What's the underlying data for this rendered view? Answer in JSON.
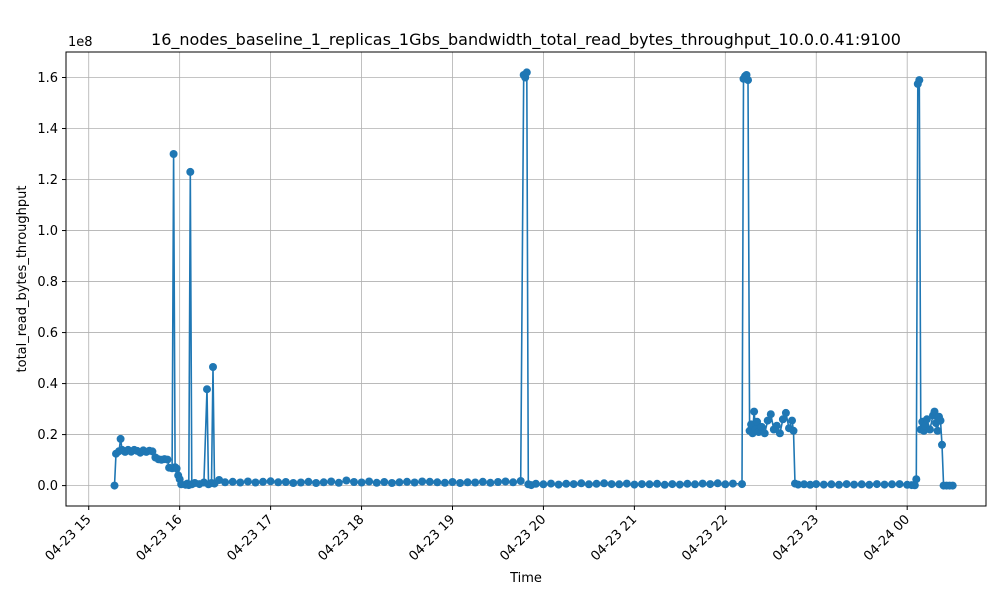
{
  "chart_data": {
    "type": "line",
    "title": "16_nodes_baseline_1_replicas_1Gbs_bandwidth_total_read_bytes_throughput_10.0.0.41:9100",
    "xlabel": "Time",
    "ylabel": "total_read_bytes_throughput",
    "y_offset_label": "1e8",
    "y_tick_labels": [
      "0.0",
      "0.2",
      "0.4",
      "0.6",
      "0.8",
      "1.0",
      "1.2",
      "1.4",
      "1.6"
    ],
    "y_ticks": [
      0,
      20000000,
      40000000,
      60000000,
      80000000,
      100000000,
      120000000,
      140000000,
      160000000
    ],
    "x_tick_labels": [
      "04-23 15",
      "04-23 16",
      "04-23 17",
      "04-23 18",
      "04-23 19",
      "04-23 20",
      "04-23 21",
      "04-23 22",
      "04-23 23",
      "04-24 00"
    ],
    "x_ticks": [
      "2024-04-23 15:00",
      "2024-04-23 16:00",
      "2024-04-23 17:00",
      "2024-04-23 18:00",
      "2024-04-23 19:00",
      "2024-04-23 20:00",
      "2024-04-23 21:00",
      "2024-04-23 22:00",
      "2024-04-23 23:00",
      "2024-04-24 00:00"
    ],
    "xlim": [
      "2024-04-23 14:45",
      "2024-04-24 00:52"
    ],
    "ylim": [
      -8000000,
      170000000
    ],
    "grid": true,
    "color": "#1f77b4",
    "series": [
      {
        "points": [
          [
            "2024-04-23 15:17",
            0
          ],
          [
            "2024-04-23 15:18",
            12500000
          ],
          [
            "2024-04-23 15:20",
            13500000
          ],
          [
            "2024-04-23 15:21",
            18300000
          ],
          [
            "2024-04-23 15:22",
            14000000
          ],
          [
            "2024-04-23 15:24",
            13200000
          ],
          [
            "2024-04-23 15:26",
            14000000
          ],
          [
            "2024-04-23 15:28",
            13300000
          ],
          [
            "2024-04-23 15:30",
            14000000
          ],
          [
            "2024-04-23 15:32",
            13600000
          ],
          [
            "2024-04-23 15:34",
            12900000
          ],
          [
            "2024-04-23 15:36",
            13800000
          ],
          [
            "2024-04-23 15:38",
            13200000
          ],
          [
            "2024-04-23 15:40",
            13700000
          ],
          [
            "2024-04-23 15:42",
            13400000
          ],
          [
            "2024-04-23 15:44",
            11000000
          ],
          [
            "2024-04-23 15:46",
            10300000
          ],
          [
            "2024-04-23 15:48",
            10100000
          ],
          [
            "2024-04-23 15:50",
            10400000
          ],
          [
            "2024-04-23 15:52",
            10200000
          ],
          [
            "2024-04-23 15:53",
            7000000
          ],
          [
            "2024-04-23 15:55",
            6800000
          ],
          [
            "2024-04-23 15:56",
            130000000
          ],
          [
            "2024-04-23 15:57",
            7200000
          ],
          [
            "2024-04-23 15:58",
            6700000
          ],
          [
            "2024-04-23 15:59",
            4000000
          ],
          [
            "2024-04-23 16:00",
            2500000
          ],
          [
            "2024-04-23 16:01",
            500000
          ],
          [
            "2024-04-23 16:04",
            300000
          ],
          [
            "2024-04-23 16:05",
            800000
          ],
          [
            "2024-04-23 16:06",
            200000
          ],
          [
            "2024-04-23 16:07",
            123000000
          ],
          [
            "2024-04-23 16:08",
            500000
          ],
          [
            "2024-04-23 16:10",
            1000000
          ],
          [
            "2024-04-23 16:13",
            600000
          ],
          [
            "2024-04-23 16:16",
            1200000
          ],
          [
            "2024-04-23 16:18",
            37800000
          ],
          [
            "2024-04-23 16:19",
            500000
          ],
          [
            "2024-04-23 16:21",
            1000000
          ],
          [
            "2024-04-23 16:22",
            46500000
          ],
          [
            "2024-04-23 16:23",
            800000
          ],
          [
            "2024-04-23 16:26",
            2200000
          ],
          [
            "2024-04-23 16:30",
            1300000
          ],
          [
            "2024-04-23 16:35",
            1500000
          ],
          [
            "2024-04-23 16:40",
            1200000
          ],
          [
            "2024-04-23 16:45",
            1600000
          ],
          [
            "2024-04-23 16:50",
            1200000
          ],
          [
            "2024-04-23 16:55",
            1500000
          ],
          [
            "2024-04-23 17:00",
            1700000
          ],
          [
            "2024-04-23 17:05",
            1300000
          ],
          [
            "2024-04-23 17:10",
            1400000
          ],
          [
            "2024-04-23 17:15",
            1000000
          ],
          [
            "2024-04-23 17:20",
            1200000
          ],
          [
            "2024-04-23 17:25",
            1500000
          ],
          [
            "2024-04-23 17:30",
            1000000
          ],
          [
            "2024-04-23 17:35",
            1300000
          ],
          [
            "2024-04-23 17:40",
            1600000
          ],
          [
            "2024-04-23 17:45",
            1100000
          ],
          [
            "2024-04-23 17:50",
            2000000
          ],
          [
            "2024-04-23 17:55",
            1400000
          ],
          [
            "2024-04-23 18:00",
            1200000
          ],
          [
            "2024-04-23 18:05",
            1600000
          ],
          [
            "2024-04-23 18:10",
            1100000
          ],
          [
            "2024-04-23 18:15",
            1400000
          ],
          [
            "2024-04-23 18:20",
            1000000
          ],
          [
            "2024-04-23 18:25",
            1300000
          ],
          [
            "2024-04-23 18:30",
            1500000
          ],
          [
            "2024-04-23 18:35",
            1200000
          ],
          [
            "2024-04-23 18:40",
            1600000
          ],
          [
            "2024-04-23 18:45",
            1500000
          ],
          [
            "2024-04-23 18:50",
            1300000
          ],
          [
            "2024-04-23 18:55",
            1100000
          ],
          [
            "2024-04-23 19:00",
            1400000
          ],
          [
            "2024-04-23 19:05",
            1000000
          ],
          [
            "2024-04-23 19:10",
            1300000
          ],
          [
            "2024-04-23 19:15",
            1200000
          ],
          [
            "2024-04-23 19:20",
            1500000
          ],
          [
            "2024-04-23 19:25",
            1100000
          ],
          [
            "2024-04-23 19:30",
            1400000
          ],
          [
            "2024-04-23 19:35",
            1600000
          ],
          [
            "2024-04-23 19:40",
            1300000
          ],
          [
            "2024-04-23 19:45",
            1800000
          ],
          [
            "2024-04-23 19:47",
            161000000
          ],
          [
            "2024-04-23 19:48",
            160000000
          ],
          [
            "2024-04-23 19:49",
            162000000
          ],
          [
            "2024-04-23 19:50",
            500000
          ],
          [
            "2024-04-23 19:52",
            200000
          ],
          [
            "2024-04-23 19:55",
            700000
          ],
          [
            "2024-04-23 20:00",
            500000
          ],
          [
            "2024-04-23 20:05",
            800000
          ],
          [
            "2024-04-23 20:10",
            400000
          ],
          [
            "2024-04-23 20:15",
            700000
          ],
          [
            "2024-04-23 20:20",
            600000
          ],
          [
            "2024-04-23 20:25",
            900000
          ],
          [
            "2024-04-23 20:30",
            500000
          ],
          [
            "2024-04-23 20:35",
            700000
          ],
          [
            "2024-04-23 20:40",
            900000
          ],
          [
            "2024-04-23 20:45",
            600000
          ],
          [
            "2024-04-23 20:50",
            500000
          ],
          [
            "2024-04-23 20:55",
            800000
          ],
          [
            "2024-04-23 21:00",
            400000
          ],
          [
            "2024-04-23 21:05",
            600000
          ],
          [
            "2024-04-23 21:10",
            500000
          ],
          [
            "2024-04-23 21:15",
            700000
          ],
          [
            "2024-04-23 21:20",
            300000
          ],
          [
            "2024-04-23 21:25",
            600000
          ],
          [
            "2024-04-23 21:30",
            400000
          ],
          [
            "2024-04-23 21:35",
            700000
          ],
          [
            "2024-04-23 21:40",
            500000
          ],
          [
            "2024-04-23 21:45",
            800000
          ],
          [
            "2024-04-23 21:50",
            600000
          ],
          [
            "2024-04-23 21:55",
            900000
          ],
          [
            "2024-04-23 22:00",
            500000
          ],
          [
            "2024-04-23 22:05",
            800000
          ],
          [
            "2024-04-23 22:11",
            600000
          ],
          [
            "2024-04-23 22:12",
            159500000
          ],
          [
            "2024-04-23 22:13",
            160500000
          ],
          [
            "2024-04-23 22:14",
            161000000
          ],
          [
            "2024-04-23 22:15",
            159000000
          ],
          [
            "2024-04-23 22:16",
            21500000
          ],
          [
            "2024-04-23 22:17",
            24000000
          ],
          [
            "2024-04-23 22:18",
            20500000
          ],
          [
            "2024-04-23 22:19",
            29000000
          ],
          [
            "2024-04-23 22:20",
            22000000
          ],
          [
            "2024-04-23 22:21",
            25000000
          ],
          [
            "2024-04-23 22:22",
            21000000
          ],
          [
            "2024-04-23 22:24",
            23000000
          ],
          [
            "2024-04-23 22:26",
            20500000
          ],
          [
            "2024-04-23 22:28",
            25500000
          ],
          [
            "2024-04-23 22:30",
            28000000
          ],
          [
            "2024-04-23 22:32",
            22000000
          ],
          [
            "2024-04-23 22:34",
            23500000
          ],
          [
            "2024-04-23 22:36",
            20500000
          ],
          [
            "2024-04-23 22:38",
            26000000
          ],
          [
            "2024-04-23 22:40",
            28500000
          ],
          [
            "2024-04-23 22:42",
            22500000
          ],
          [
            "2024-04-23 22:44",
            25500000
          ],
          [
            "2024-04-23 22:45",
            21500000
          ],
          [
            "2024-04-23 22:46",
            800000
          ],
          [
            "2024-04-23 22:48",
            400000
          ],
          [
            "2024-04-23 22:52",
            500000
          ],
          [
            "2024-04-23 22:56",
            300000
          ],
          [
            "2024-04-23 23:00",
            600000
          ],
          [
            "2024-04-23 23:05",
            400000
          ],
          [
            "2024-04-23 23:10",
            500000
          ],
          [
            "2024-04-23 23:15",
            300000
          ],
          [
            "2024-04-23 23:20",
            600000
          ],
          [
            "2024-04-23 23:25",
            400000
          ],
          [
            "2024-04-23 23:30",
            500000
          ],
          [
            "2024-04-23 23:35",
            300000
          ],
          [
            "2024-04-23 23:40",
            600000
          ],
          [
            "2024-04-23 23:45",
            400000
          ],
          [
            "2024-04-23 23:50",
            500000
          ],
          [
            "2024-04-23 23:55",
            600000
          ],
          [
            "2024-04-24 00:00",
            300000
          ],
          [
            "2024-04-24 00:03",
            200000
          ],
          [
            "2024-04-24 00:05",
            100000
          ],
          [
            "2024-04-24 00:06",
            2500000
          ],
          [
            "2024-04-24 00:07",
            157500000
          ],
          [
            "2024-04-24 00:08",
            159000000
          ],
          [
            "2024-04-24 00:09",
            22000000
          ],
          [
            "2024-04-24 00:10",
            25000000
          ],
          [
            "2024-04-24 00:11",
            21500000
          ],
          [
            "2024-04-24 00:12",
            23500000
          ],
          [
            "2024-04-24 00:13",
            26000000
          ],
          [
            "2024-04-24 00:15",
            22000000
          ],
          [
            "2024-04-24 00:17",
            27500000
          ],
          [
            "2024-04-24 00:18",
            29000000
          ],
          [
            "2024-04-24 00:19",
            24500000
          ],
          [
            "2024-04-24 00:20",
            21500000
          ],
          [
            "2024-04-24 00:21",
            27000000
          ],
          [
            "2024-04-24 00:22",
            25500000
          ],
          [
            "2024-04-24 00:23",
            16000000
          ],
          [
            "2024-04-24 00:24",
            0
          ],
          [
            "2024-04-24 00:26",
            0
          ],
          [
            "2024-04-24 00:28",
            0
          ],
          [
            "2024-04-24 00:30",
            0
          ]
        ]
      }
    ]
  }
}
